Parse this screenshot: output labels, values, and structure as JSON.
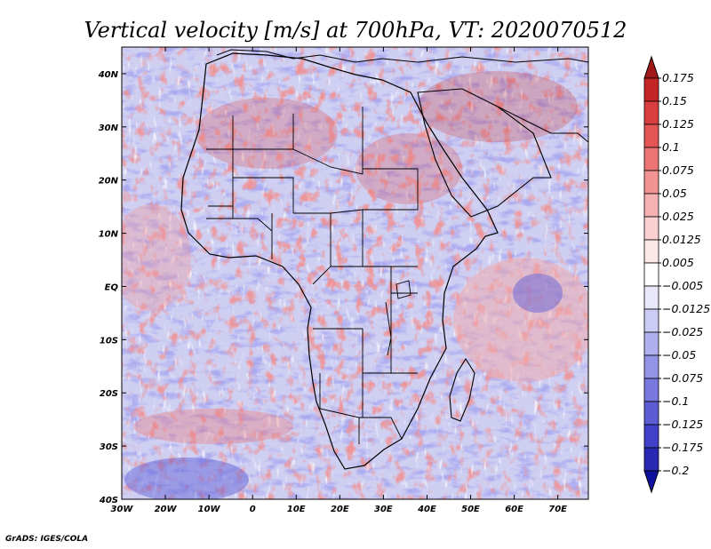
{
  "chart_data": {
    "type": "heatmap",
    "title": "Vertical velocity [m/s] at 700hPa, VT: 2020070512",
    "variable": "Vertical velocity",
    "units": "m/s",
    "level": "700hPa",
    "valid_time": "2020070512",
    "x_range": [
      -30,
      77
    ],
    "y_range": [
      -40,
      45
    ],
    "x_ticks": [
      {
        "value": -30,
        "label": "30W"
      },
      {
        "value": -20,
        "label": "20W"
      },
      {
        "value": -10,
        "label": "10W"
      },
      {
        "value": 0,
        "label": "0"
      },
      {
        "value": 10,
        "label": "10E"
      },
      {
        "value": 20,
        "label": "20E"
      },
      {
        "value": 30,
        "label": "30E"
      },
      {
        "value": 40,
        "label": "40E"
      },
      {
        "value": 50,
        "label": "50E"
      },
      {
        "value": 60,
        "label": "60E"
      },
      {
        "value": 70,
        "label": "70E"
      }
    ],
    "y_ticks": [
      {
        "value": 40,
        "label": "40N"
      },
      {
        "value": 30,
        "label": "30N"
      },
      {
        "value": 20,
        "label": "20N"
      },
      {
        "value": 10,
        "label": "10N"
      },
      {
        "value": 0,
        "label": "EQ"
      },
      {
        "value": -10,
        "label": "10S"
      },
      {
        "value": -20,
        "label": "20S"
      },
      {
        "value": -30,
        "label": "30S"
      },
      {
        "value": -40,
        "label": "40S"
      }
    ],
    "colorbar": {
      "labels": [
        "0.175",
        "0.15",
        "0.125",
        "0.1",
        "0.075",
        "0.05",
        "0.025",
        "0.0125",
        "0.005",
        "−0.005",
        "−0.0125",
        "−0.025",
        "−0.05",
        "−0.075",
        "−0.1",
        "−0.125",
        "−0.175",
        "−0.2"
      ],
      "colors": [
        "#a01818",
        "#c42626",
        "#d83e3e",
        "#e45656",
        "#ec7474",
        "#f29494",
        "#f6b2b2",
        "#fad0d0",
        "#fde8e8",
        "#ffffff",
        "#e8e8fa",
        "#ccccf4",
        "#b0b0ee",
        "#9494e6",
        "#7878de",
        "#5c5cd4",
        "#4040c8",
        "#2828b4",
        "#1010a0"
      ]
    },
    "country_labels": []
  },
  "footer": {
    "credit": "GrADS: IGES/COLA"
  }
}
